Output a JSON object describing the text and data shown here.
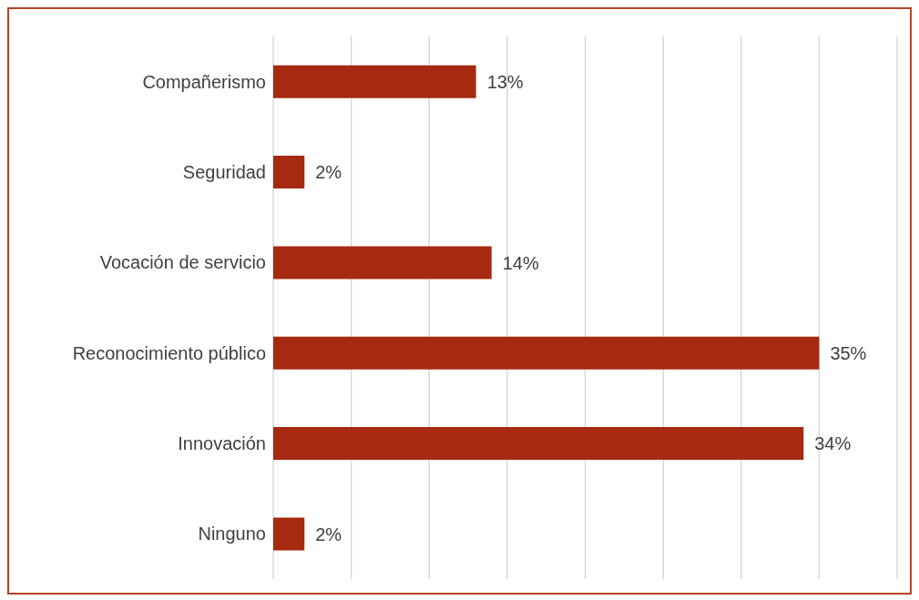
{
  "chart_data": {
    "type": "bar",
    "orientation": "horizontal",
    "categories": [
      "Compañerismo",
      "Seguridad",
      "Vocación de servicio",
      "Reconocimiento público",
      "Innovación",
      "Ninguno"
    ],
    "values": [
      13,
      2,
      14,
      35,
      34,
      2
    ],
    "value_labels": [
      "13%",
      "2%",
      "14%",
      "35%",
      "34%",
      "2%"
    ],
    "color": "#a52a0f",
    "xlim": [
      0,
      40
    ],
    "xticks": [
      {
        "value": 0,
        "label": null
      },
      {
        "value": 5,
        "label": null
      },
      {
        "value": 10,
        "label": null
      },
      {
        "value": 15,
        "label": null
      },
      {
        "value": 20,
        "label": null
      },
      {
        "value": 25,
        "label": null
      },
      {
        "value": 30,
        "label": null
      },
      {
        "value": 35,
        "label": null
      },
      {
        "value": 40,
        "label": null
      }
    ],
    "grid": "x",
    "tick_labels": "y",
    "legend": false
  }
}
